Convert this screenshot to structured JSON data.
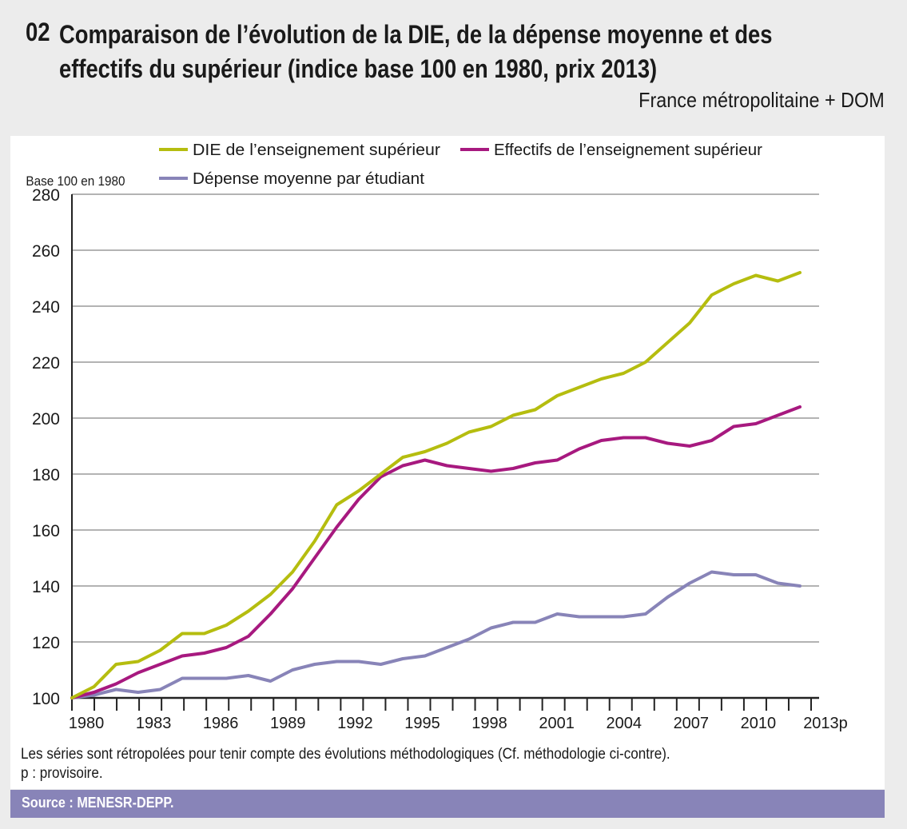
{
  "header": {
    "number": "02",
    "title_line1": "Comparaison de l’évolution de la DIE, de la dépense moyenne et des",
    "title_line2": "effectifs du supérieur (indice base 100 en 1980, prix 2013)",
    "subtitle": "France métropolitaine + DOM"
  },
  "footer": {
    "note": "Les séries sont rétropolées pour tenir compte des évolutions méthodologiques (Cf. méthodologie ci-contre).",
    "provisional": "p : provisoire.",
    "source": "Source : MENESR-DEPP."
  },
  "colors": {
    "die": "#b5bd0f",
    "effectifs": "#a7197f",
    "depense": "#8884b8",
    "background": "#ececec",
    "source_bar": "#8884b8"
  },
  "chart_data": {
    "type": "line",
    "title": "Comparaison de l’évolution de la DIE, de la dépense moyenne et des effectifs du supérieur (indice base 100 en 1980, prix 2013)",
    "ylabel": "Base 100 en 1980",
    "xlabel": "",
    "ylim": [
      100,
      280
    ],
    "yticks": [
      100,
      120,
      140,
      160,
      180,
      200,
      220,
      240,
      260,
      280
    ],
    "x": [
      1980,
      1981,
      1982,
      1983,
      1984,
      1985,
      1986,
      1987,
      1988,
      1989,
      1990,
      1991,
      1992,
      1993,
      1994,
      1995,
      1996,
      1997,
      1998,
      1999,
      2000,
      2001,
      2002,
      2003,
      2004,
      2005,
      2006,
      2007,
      2008,
      2009,
      2010,
      2011,
      2012,
      2013
    ],
    "xtick_labels": [
      "1980",
      "1983",
      "1986",
      "1989",
      "1992",
      "1995",
      "1998",
      "2001",
      "2004",
      "2007",
      "2010",
      "2013p"
    ],
    "grid": true,
    "legend_position": "top",
    "series": [
      {
        "name": "DIE de l’enseignement  supérieur",
        "color": "#b5bd0f",
        "values": [
          100,
          104,
          112,
          113,
          117,
          123,
          123,
          126,
          131,
          137,
          145,
          156,
          169,
          174,
          180,
          186,
          188,
          191,
          195,
          197,
          201,
          203,
          208,
          211,
          214,
          216,
          220,
          227,
          234,
          244,
          248,
          251,
          249,
          252
        ]
      },
      {
        "name": "Effectifs de l’enseignement supérieur",
        "color": "#a7197f",
        "values": [
          100,
          102,
          105,
          109,
          112,
          115,
          116,
          118,
          122,
          130,
          139,
          150,
          161,
          171,
          179,
          183,
          185,
          183,
          182,
          181,
          182,
          184,
          185,
          189,
          192,
          193,
          193,
          191,
          190,
          192,
          197,
          198,
          201,
          204
        ]
      },
      {
        "name": "Dépense moyenne par étudiant",
        "color": "#8884b8",
        "values": [
          100,
          101,
          103,
          102,
          103,
          107,
          107,
          107,
          108,
          106,
          110,
          112,
          113,
          113,
          112,
          114,
          115,
          118,
          121,
          125,
          127,
          127,
          130,
          129,
          129,
          129,
          130,
          136,
          141,
          145,
          144,
          144,
          141,
          140
        ]
      }
    ]
  }
}
